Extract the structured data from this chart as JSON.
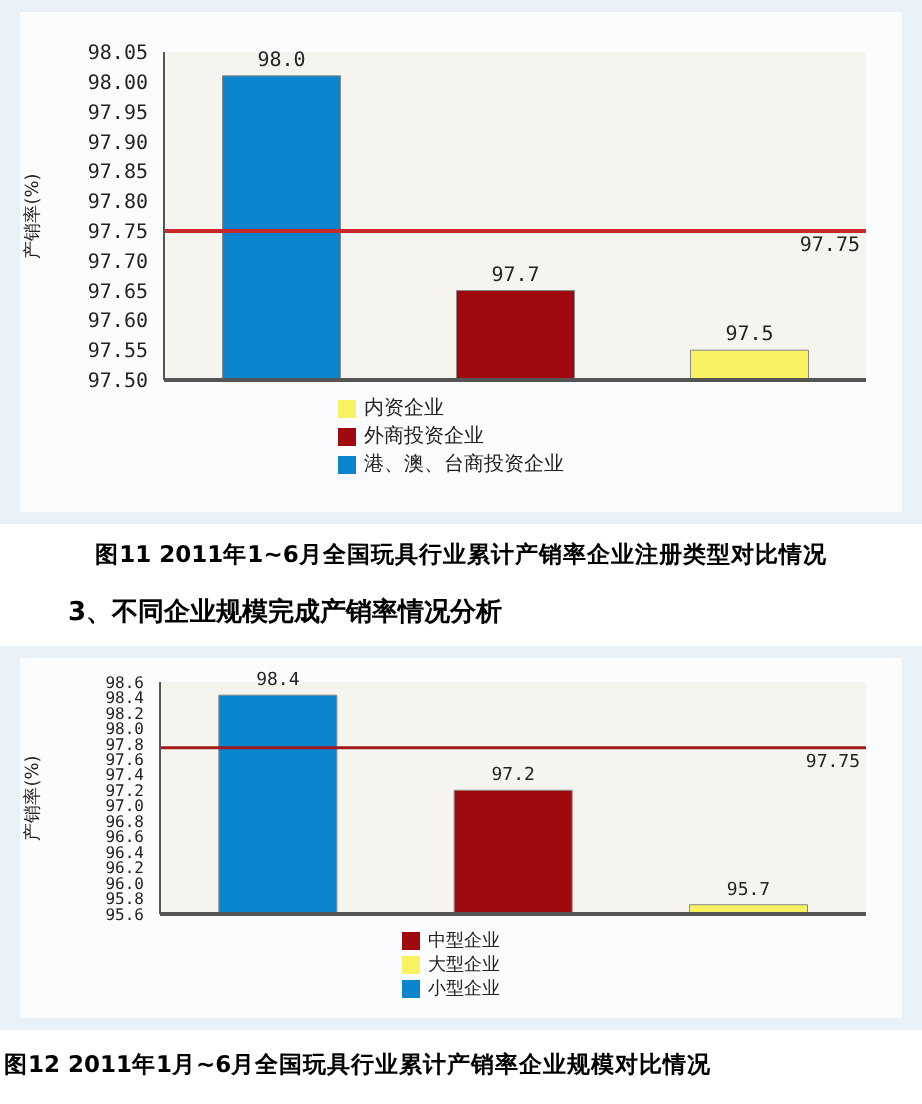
{
  "chart_data": [
    {
      "type": "bar",
      "ylabel": "产销率(%)",
      "categories": [
        null,
        null,
        null
      ],
      "series": [
        {
          "name": "港、澳、台商投资企业",
          "color": "#0a84cc",
          "values": [
            98.01,
            null,
            null
          ],
          "value_labels": [
            "98.0",
            null,
            null
          ]
        },
        {
          "name": "外商投资企业",
          "color": "#a00a0e",
          "values": [
            null,
            97.65,
            null
          ],
          "value_labels": [
            null,
            "97.7",
            null
          ]
        },
        {
          "name": "内资企业",
          "color": "#f8f262",
          "values": [
            null,
            null,
            97.55
          ],
          "value_labels": [
            null,
            null,
            "97.5"
          ]
        }
      ],
      "ylim": [
        97.5,
        98.05
      ],
      "yticks": [
        {
          "value": 97.5,
          "label": "97.50"
        },
        {
          "value": 97.55,
          "label": "97.55"
        },
        {
          "value": 97.6,
          "label": "97.60"
        },
        {
          "value": 97.65,
          "label": "97.65"
        },
        {
          "value": 97.7,
          "label": "97.70"
        },
        {
          "value": 97.75,
          "label": "97.75"
        },
        {
          "value": 97.8,
          "label": "97.80"
        },
        {
          "value": 97.85,
          "label": "97.85"
        },
        {
          "value": 97.9,
          "label": "97.90"
        },
        {
          "value": 97.95,
          "label": "97.95"
        },
        {
          "value": 98,
          "label": "98.00"
        },
        {
          "value": 98.05,
          "label": "98.05"
        }
      ],
      "ref_lines": [
        {
          "axis": "y",
          "value": 97.75,
          "label": "97.75",
          "color": "#c8282a"
        }
      ],
      "tick_labels": "y",
      "legend": "bottom",
      "annotations": [
        "图11 2011年1~6月全国玩具行业累计产销率企业注册类型对比情况"
      ]
    },
    {
      "type": "bar",
      "title": "3、不同企业规模完成产销率情况分析",
      "ylabel": "产销率(%)",
      "categories": [
        null,
        null,
        null
      ],
      "series": [
        {
          "name": "小型企业",
          "color": "#0a84cc",
          "values": [
            98.43,
            null,
            null
          ],
          "value_labels": [
            "98.4",
            null,
            null
          ]
        },
        {
          "name": "中型企业",
          "color": "#a00a0e",
          "values": [
            null,
            97.2,
            null
          ],
          "value_labels": [
            null,
            "97.2",
            null
          ]
        },
        {
          "name": "大型企业",
          "color": "#f8f262",
          "values": [
            null,
            null,
            95.72
          ],
          "value_labels": [
            null,
            null,
            "95.7"
          ]
        }
      ],
      "ylim": [
        95.6,
        98.6
      ],
      "yticks": [
        {
          "value": 95.6,
          "label": "95.6"
        },
        {
          "value": 95.8,
          "label": "95.8"
        },
        {
          "value": 96,
          "label": "96.0"
        },
        {
          "value": 96.2,
          "label": "96.2"
        },
        {
          "value": 96.4,
          "label": "96.4"
        },
        {
          "value": 96.6,
          "label": "96.6"
        },
        {
          "value": 96.8,
          "label": "96.8"
        },
        {
          "value": 97,
          "label": "97.0"
        },
        {
          "value": 97.2,
          "label": "97.2"
        },
        {
          "value": 97.4,
          "label": "97.4"
        },
        {
          "value": 97.6,
          "label": "97.6"
        },
        {
          "value": 97.8,
          "label": "97.8"
        },
        {
          "value": 98,
          "label": "98.0"
        },
        {
          "value": 98.2,
          "label": "98.2"
        },
        {
          "value": 98.4,
          "label": "98.4"
        },
        {
          "value": 98.6,
          "label": "98.6"
        }
      ],
      "ref_lines": [
        {
          "axis": "y",
          "value": 97.75,
          "label": "97.75",
          "color": "#a01818"
        }
      ],
      "tick_labels": "y",
      "legend": "bottom",
      "annotations": [
        "图12 2011年1月~6月全国玩具行业累计产销率企业规模对比情况"
      ]
    }
  ]
}
